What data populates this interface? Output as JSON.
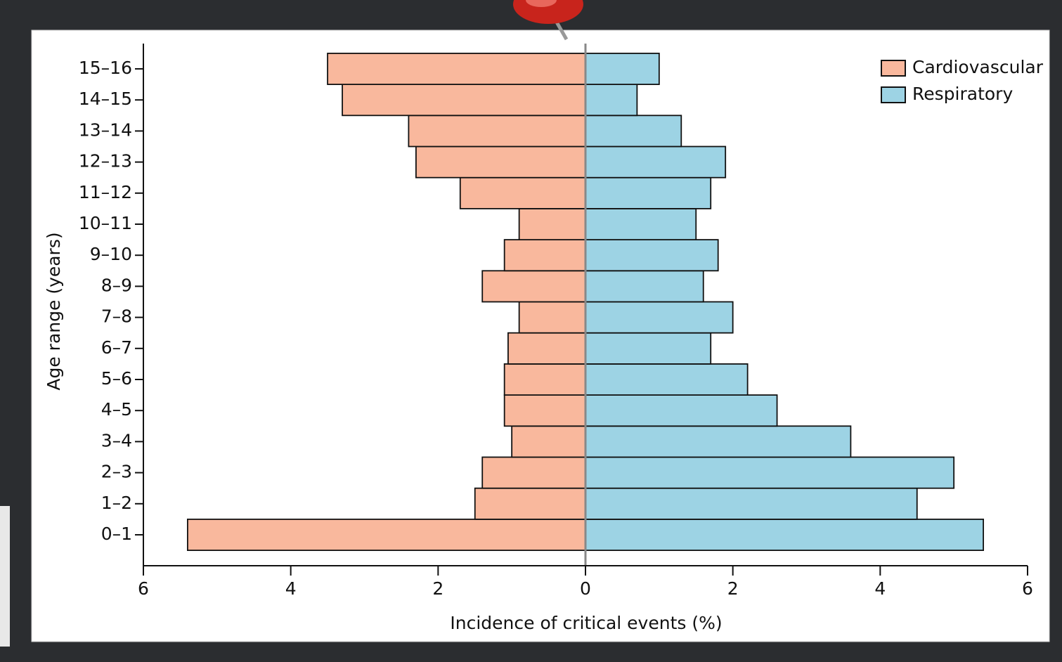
{
  "chart_data": {
    "type": "population_pyramid",
    "x_label": "Incidence of critical events (%)",
    "y_label": "Age range (years)",
    "categories": [
      "0–1",
      "1–2",
      "2–3",
      "3–4",
      "4–5",
      "5–6",
      "6–7",
      "7–8",
      "8–9",
      "9–10",
      "10–11",
      "11–12",
      "12–13",
      "13–14",
      "14–15",
      "15–16"
    ],
    "series": [
      {
        "name": "Cardiovascular",
        "color": "#f9b89d",
        "values": [
          5.4,
          1.5,
          1.4,
          1.0,
          1.1,
          1.1,
          1.05,
          0.9,
          1.4,
          1.1,
          0.9,
          1.7,
          2.3,
          2.4,
          3.3,
          3.5
        ]
      },
      {
        "name": "Respiratory",
        "color": "#9dd3e4",
        "values": [
          5.4,
          4.5,
          5.0,
          3.6,
          2.6,
          2.2,
          1.7,
          2.0,
          1.6,
          1.8,
          1.5,
          1.7,
          1.9,
          1.3,
          0.7,
          1.0
        ]
      }
    ],
    "xlim": [
      -6,
      6
    ],
    "xticks": [
      {
        "value": -6,
        "label": "6"
      },
      {
        "value": -4,
        "label": "4"
      },
      {
        "value": -2,
        "label": "2"
      },
      0,
      2,
      4,
      6
    ],
    "legend": "upper right"
  }
}
